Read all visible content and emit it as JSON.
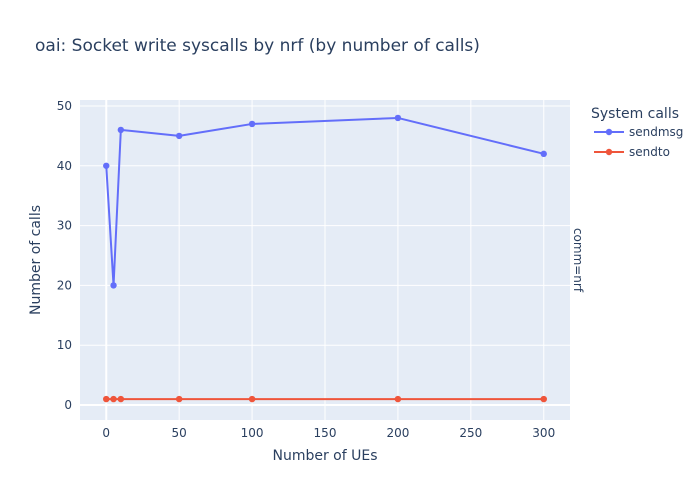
{
  "chart_data": {
    "type": "line",
    "title": "oai: Socket write syscalls by nrf (by number of calls)",
    "xlabel": "Number of UEs",
    "ylabel": "Number of calls",
    "facet_label": "comm=nrf",
    "legend_title": "System calls",
    "xlim": [
      -18,
      318
    ],
    "ylim": [
      -2.5,
      51
    ],
    "x_ticks": [
      0,
      50,
      100,
      150,
      200,
      250,
      300
    ],
    "y_ticks": [
      0,
      10,
      20,
      30,
      40,
      50
    ],
    "grid": true,
    "legend_placement": "top-right",
    "series": [
      {
        "name": "sendmsg",
        "color": "#636efa",
        "points": [
          [
            0,
            40
          ],
          [
            5,
            20
          ],
          [
            10,
            46
          ],
          [
            50,
            45
          ],
          [
            100,
            47
          ],
          [
            200,
            48
          ],
          [
            300,
            42
          ]
        ]
      },
      {
        "name": "sendto",
        "color": "#ef553b",
        "points": [
          [
            0,
            1
          ],
          [
            5,
            1
          ],
          [
            10,
            1
          ],
          [
            50,
            1
          ],
          [
            100,
            1
          ],
          [
            200,
            1
          ],
          [
            300,
            1
          ]
        ]
      }
    ]
  }
}
